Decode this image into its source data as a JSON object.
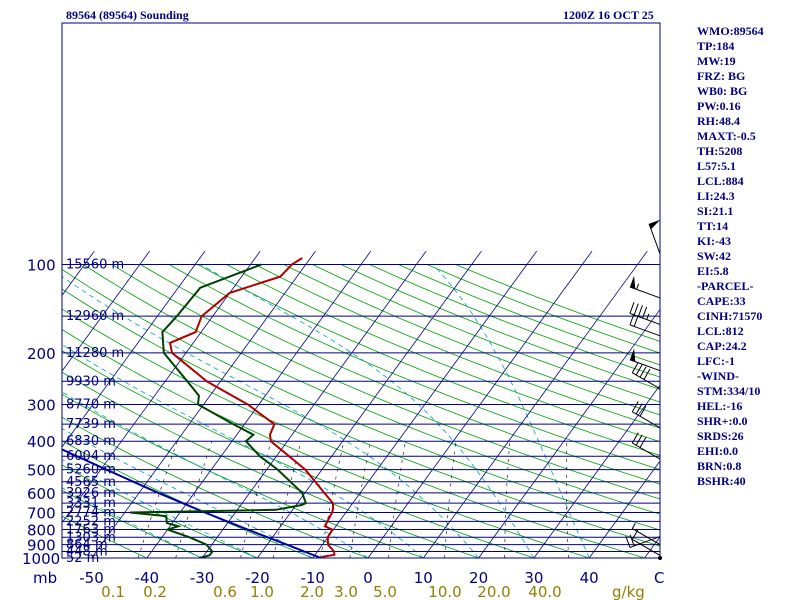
{
  "header": {
    "title": "89564 (89564) Sounding",
    "time": "1200Z 16 OCT 25"
  },
  "indices": [
    "WMO:89564",
    "TP:184",
    "MW:19",
    "FRZ: BG",
    "WB0: BG",
    "PW:0.16",
    "RH:48.4",
    "MAXT:-0.5",
    "TH:5208",
    "L57:5.1",
    "LCL:884",
    "LI:24.3",
    "SI:21.1",
    "TT:14",
    "KI:-43",
    "SW:42",
    "EI:5.8",
    "-PARCEL-",
    "CAPE:33",
    "CINH:71570",
    "LCL:812",
    "CAP:24.2",
    "LFC:-1",
    "-WIND-",
    "STM:334/10",
    "HEL:-16",
    "SHR+:0.0",
    "SRDS:26",
    "EHI:0.0",
    "BRN:0.8",
    "BSHR:40"
  ],
  "colors": {
    "isobar": "#000080",
    "skewed": "#000080",
    "dry_adiabat": "#00a000",
    "moist_adiabat": "#00a0c0",
    "mixing_ratio": "#000000",
    "temperature": "#b00000",
    "dewpoint": "#004000",
    "parcel": "#0000a0",
    "mixing_label": "#908000"
  },
  "chart_data": {
    "type": "skew-t",
    "pressure_ticks": [
      "100",
      "200",
      "300",
      "400",
      "500",
      "600",
      "700",
      "800",
      "900",
      "1000"
    ],
    "temp_ticks": [
      "-50",
      "-40",
      "-30",
      "-20",
      "-10",
      "0",
      "10",
      "20",
      "30",
      "40"
    ],
    "temp_unit": "C",
    "pressure_unit": "mb",
    "mixing_ratio_ticks": [
      "0.1",
      "0.2",
      "0.6",
      "1.0",
      "2.0",
      "3.0",
      "5.0",
      "10.0",
      "20.0",
      "40.0"
    ],
    "mixing_ratio_unit": "g/kg",
    "heights": [
      {
        "p": 100,
        "label": "15560 m"
      },
      {
        "p": 150,
        "label": "12960 m"
      },
      {
        "p": 200,
        "label": "11280 m"
      },
      {
        "p": 250,
        "label": "9930 m"
      },
      {
        "p": 300,
        "label": "8770 m"
      },
      {
        "p": 350,
        "label": "7739 m"
      },
      {
        "p": 400,
        "label": "6830 m"
      },
      {
        "p": 450,
        "label": "6004 m"
      },
      {
        "p": 500,
        "label": "5260 m"
      },
      {
        "p": 550,
        "label": "4565 m"
      },
      {
        "p": 600,
        "label": "3926 m"
      },
      {
        "p": 650,
        "label": "3331 m"
      },
      {
        "p": 700,
        "label": "2774 m"
      },
      {
        "p": 750,
        "label": "2252 m"
      },
      {
        "p": 800,
        "label": "1763 m"
      },
      {
        "p": 850,
        "label": "1303 m"
      },
      {
        "p": 900,
        "label": "864 m"
      },
      {
        "p": 950,
        "label": "448 m"
      },
      {
        "p": 1000,
        "label": "52 m"
      }
    ],
    "temperature": [
      {
        "p": 1000,
        "t": -8.5
      },
      {
        "p": 990,
        "t": -8.3
      },
      {
        "p": 975,
        "t": -6.5
      },
      {
        "p": 950,
        "t": -7.0
      },
      {
        "p": 900,
        "t": -9.0
      },
      {
        "p": 850,
        "t": -10.0
      },
      {
        "p": 800,
        "t": -10.2
      },
      {
        "p": 780,
        "t": -12.0
      },
      {
        "p": 700,
        "t": -12.5
      },
      {
        "p": 680,
        "t": -12.8
      },
      {
        "p": 650,
        "t": -13.6
      },
      {
        "p": 600,
        "t": -16.5
      },
      {
        "p": 500,
        "t": -23.0
      },
      {
        "p": 400,
        "t": -33.0
      },
      {
        "p": 380,
        "t": -34.0
      },
      {
        "p": 350,
        "t": -34.6
      },
      {
        "p": 300,
        "t": -42.0
      },
      {
        "p": 250,
        "t": -52.5
      },
      {
        "p": 200,
        "t": -62.5
      },
      {
        "p": 185,
        "t": -64.2
      },
      {
        "p": 170,
        "t": -61.0
      },
      {
        "p": 150,
        "t": -62.0
      },
      {
        "p": 125,
        "t": -60.0
      },
      {
        "p": 110,
        "t": -53.0
      },
      {
        "p": 100,
        "t": -52.5
      },
      {
        "p": 95,
        "t": -51.5
      }
    ],
    "dewpoint": [
      {
        "p": 1000,
        "t": -30.5
      },
      {
        "p": 980,
        "t": -29.0
      },
      {
        "p": 950,
        "t": -29.0
      },
      {
        "p": 900,
        "t": -31.0
      },
      {
        "p": 850,
        "t": -35.0
      },
      {
        "p": 800,
        "t": -40.0
      },
      {
        "p": 780,
        "t": -38.5
      },
      {
        "p": 760,
        "t": -41.0
      },
      {
        "p": 720,
        "t": -42.0
      },
      {
        "p": 700,
        "t": -49.0
      },
      {
        "p": 685,
        "t": -23.0
      },
      {
        "p": 660,
        "t": -19.0
      },
      {
        "p": 650,
        "t": -18.5
      },
      {
        "p": 600,
        "t": -20.5
      },
      {
        "p": 500,
        "t": -28.0
      },
      {
        "p": 450,
        "t": -33.0
      },
      {
        "p": 400,
        "t": -37.5
      },
      {
        "p": 380,
        "t": -37.0
      },
      {
        "p": 350,
        "t": -42.0
      },
      {
        "p": 300,
        "t": -51.0
      },
      {
        "p": 280,
        "t": -52.0
      },
      {
        "p": 250,
        "t": -56.0
      },
      {
        "p": 200,
        "t": -64.0
      },
      {
        "p": 170,
        "t": -67.0
      },
      {
        "p": 150,
        "t": -66.5
      },
      {
        "p": 120,
        "t": -66.0
      },
      {
        "p": 100,
        "t": -58.0
      }
    ],
    "parcel": [
      {
        "p": 1000,
        "t": -8.5
      },
      {
        "p": 900,
        "t": -16.5
      },
      {
        "p": 800,
        "t": -25.5
      },
      {
        "p": 700,
        "t": -35.5
      },
      {
        "p": 600,
        "t": -46.5
      },
      {
        "p": 500,
        "t": -59.0
      },
      {
        "p": 400,
        "t": -74.0
      },
      {
        "p": 300,
        "t": -92.0
      },
      {
        "p": 200,
        "t": -116.0
      },
      {
        "p": 100,
        "t": -156.0
      }
    ],
    "wind_barbs": [
      {
        "p": 92,
        "dir": 340,
        "kt": 50
      },
      {
        "p": 130,
        "dir": 290,
        "kt": 55
      },
      {
        "p": 160,
        "dir": 290,
        "kt": 45
      },
      {
        "p": 175,
        "dir": 290,
        "kt": 20
      },
      {
        "p": 230,
        "dir": 290,
        "kt": 50
      },
      {
        "p": 265,
        "dir": 300,
        "kt": 40
      },
      {
        "p": 360,
        "dir": 300,
        "kt": 30
      },
      {
        "p": 460,
        "dir": 300,
        "kt": 30
      },
      {
        "p": 845,
        "dir": 250,
        "kt": 20
      },
      {
        "p": 900,
        "dir": 300,
        "kt": 5
      },
      {
        "p": 980,
        "dir": 300,
        "kt": 10
      }
    ]
  }
}
